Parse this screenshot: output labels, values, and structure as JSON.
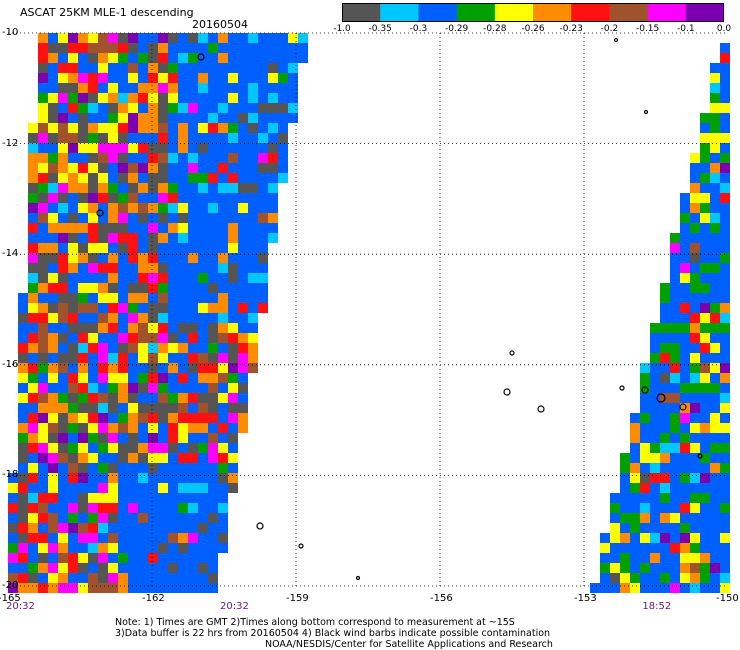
{
  "header": {
    "title": "ASCAT 25KM MLE-1 descending",
    "date": "20160504"
  },
  "colorbar": {
    "colors": [
      "#555555",
      "#00c8ff",
      "#0060ff",
      "#00a000",
      "#ffff00",
      "#ff8c00",
      "#ff1010",
      "#a0522d",
      "#ff00ff",
      "#7a00b0"
    ],
    "tick_labels": [
      "-1.0",
      "-0.35",
      "-0.3",
      "-0.29",
      "-0.28",
      "-0.26",
      "-0.23",
      "-0.2",
      "-0.15",
      "-0.1",
      "0.0"
    ]
  },
  "axes": {
    "lat_ticks": [
      "-10",
      "-12",
      "-14",
      "-16",
      "-18",
      "-20"
    ],
    "lon_ticks": [
      "-165",
      "-162",
      "-159",
      "-156",
      "-153",
      "-150"
    ],
    "lat_range": [
      -20,
      -10
    ],
    "lon_range": [
      -165,
      -150
    ],
    "grid": "dotted"
  },
  "pass_times": [
    {
      "label": "20:32",
      "lon": -165
    },
    {
      "label": "20:32",
      "lon": -160.5
    },
    {
      "label": "18:52",
      "lon": -151.7
    }
  ],
  "notes": {
    "line1": "Note: 1) Times are GMT 2)Times along bottom correspond to measurement at ~15S",
    "line2": "3)Data buffer is 22 hrs from 20160504 4) Black wind barbs indicate possible contamination",
    "line3": "NOAA/NESDIS/Center for Satellite Applications and Research"
  }
}
